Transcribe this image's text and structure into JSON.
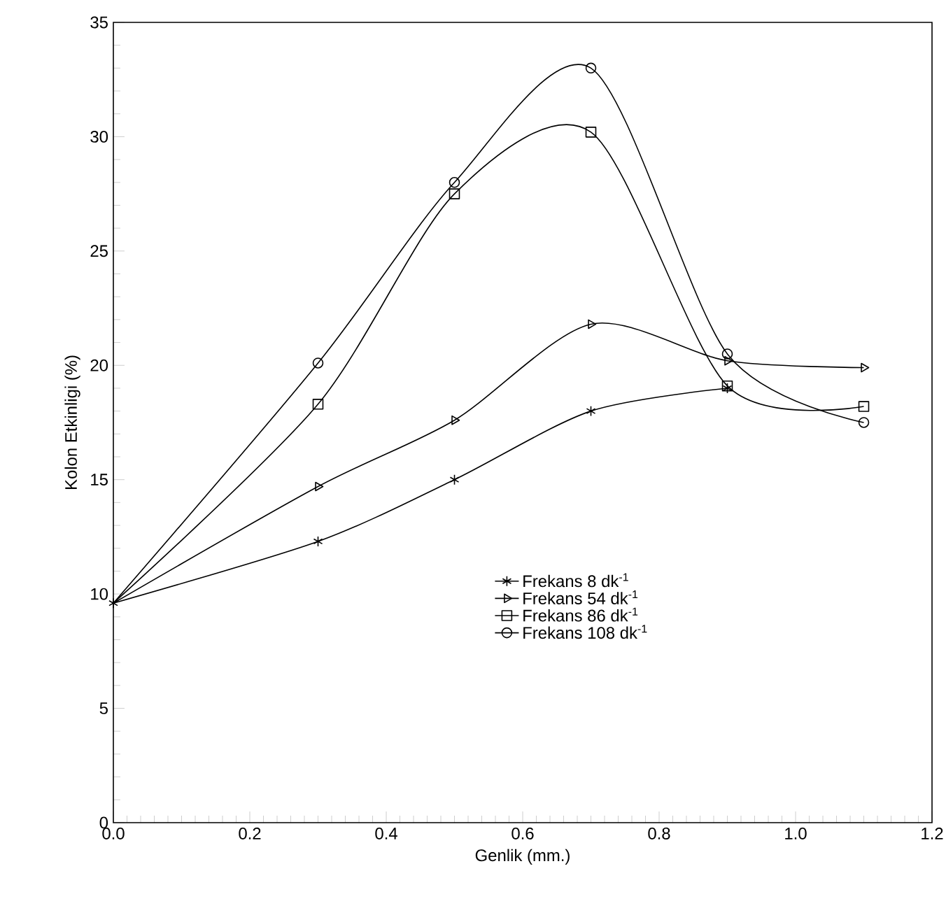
{
  "chart_data": {
    "type": "line",
    "xlabel": "Genlik (mm.)",
    "ylabel": "Kolon Etkinligi (%)",
    "xlim": [
      0,
      1.2
    ],
    "ylim": [
      0,
      35
    ],
    "xticks": [
      {
        "value": 0,
        "label": "0.0"
      },
      {
        "value": 0.2,
        "label": "0.2"
      },
      {
        "value": 0.4,
        "label": "0.4"
      },
      {
        "value": 0.6,
        "label": "0.6"
      },
      {
        "value": 0.8,
        "label": "0.8"
      },
      {
        "value": 1.0,
        "label": "1.0"
      },
      {
        "value": 1.2,
        "label": "1.2"
      }
    ],
    "yticks": [
      0,
      5,
      10,
      15,
      20,
      25,
      30,
      35
    ],
    "grid": false,
    "legend": "bottom right",
    "line_style": "solid",
    "series": [
      {
        "name": "Frekans  8  dk$^{-1}$",
        "color": "#000000",
        "marker": "cross",
        "x": [
          0,
          0.3,
          0.5,
          0.7,
          0.9
        ],
        "values": [
          9.6,
          12.3,
          15.0,
          18.0,
          19.0
        ]
      },
      {
        "name": "Frekans  54  dk$^{-1}$",
        "color": "#000000",
        "marker": "triangle",
        "x": [
          0,
          0.3,
          0.5,
          0.7,
          0.9,
          1.1
        ],
        "values": [
          9.6,
          14.7,
          17.6,
          21.8,
          20.2,
          19.9
        ]
      },
      {
        "name": "Frekans  86  dk$^{-1}$",
        "color": "#000000",
        "marker": "square",
        "x": [
          0,
          0.3,
          0.5,
          0.7,
          0.9,
          1.1
        ],
        "values": [
          9.6,
          18.3,
          27.5,
          30.2,
          19.1,
          18.2
        ]
      },
      {
        "name": "Frekans  108  dk$^{-1}$",
        "color": "#000000",
        "marker": "circle",
        "x": [
          0,
          0.3,
          0.5,
          0.7,
          0.9,
          1.1
        ],
        "values": [
          9.6,
          20.1,
          28.0,
          33.0,
          20.5,
          17.5
        ]
      }
    ]
  }
}
